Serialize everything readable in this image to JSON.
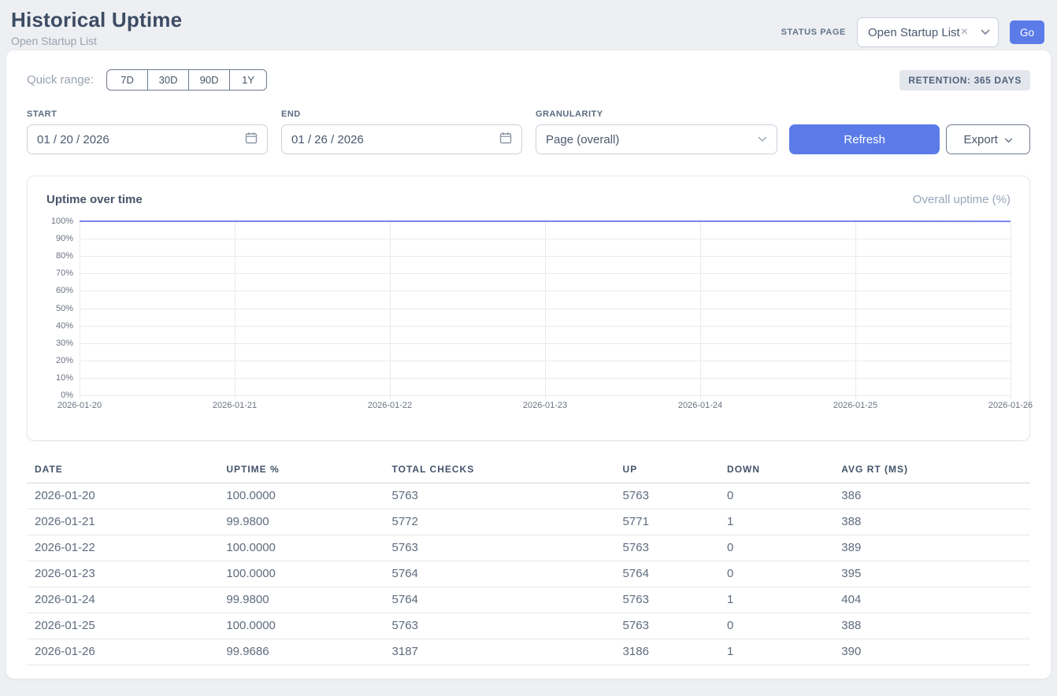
{
  "header": {
    "title": "Historical Uptime",
    "subtitle": "Open Startup List",
    "status_page_label": "STATUS PAGE",
    "status_page_value": "Open Startup List",
    "clear_icon": "x-icon",
    "go_label": "Go"
  },
  "controls": {
    "quick_range_label": "Quick range:",
    "quick_ranges": [
      "7D",
      "30D",
      "90D",
      "1Y"
    ],
    "retention_badge": "RETENTION: 365 DAYS",
    "start_label": "START",
    "start_value": "01 / 20 / 2026",
    "end_label": "END",
    "end_value": "01 / 26 / 2026",
    "granularity_label": "GRANULARITY",
    "granularity_value": "Page (overall)",
    "refresh_label": "Refresh",
    "export_label": "Export",
    "date_icon": "calendar-icon",
    "dropdown_icon": "chevron-down-icon"
  },
  "chart_data": {
    "type": "line",
    "title": "Uptime over time",
    "legend": "Overall uptime (%)",
    "legend_position": "top-right",
    "categories": [
      "2026-01-20",
      "2026-01-21",
      "2026-01-22",
      "2026-01-23",
      "2026-01-24",
      "2026-01-25",
      "2026-01-26"
    ],
    "series": [
      {
        "name": "Overall uptime (%)",
        "values": [
          100.0,
          99.98,
          100.0,
          100.0,
          99.98,
          100.0,
          99.9686
        ]
      }
    ],
    "xlabel": "",
    "ylabel": "",
    "ylim": [
      0,
      100
    ],
    "ytick_step": 10,
    "ytick_suffix": "%",
    "grid": true,
    "line_color": "#7d82ea"
  },
  "table": {
    "columns": [
      "DATE",
      "UPTIME %",
      "TOTAL CHECKS",
      "UP",
      "DOWN",
      "AVG RT (MS)"
    ],
    "rows": [
      [
        "2026-01-20",
        "100.0000",
        "5763",
        "5763",
        "0",
        "386"
      ],
      [
        "2026-01-21",
        "99.9800",
        "5772",
        "5771",
        "1",
        "388"
      ],
      [
        "2026-01-22",
        "100.0000",
        "5763",
        "5763",
        "0",
        "389"
      ],
      [
        "2026-01-23",
        "100.0000",
        "5764",
        "5764",
        "0",
        "395"
      ],
      [
        "2026-01-24",
        "99.9800",
        "5764",
        "5763",
        "1",
        "404"
      ],
      [
        "2026-01-25",
        "100.0000",
        "5763",
        "5763",
        "0",
        "388"
      ],
      [
        "2026-01-26",
        "99.9686",
        "3187",
        "3186",
        "1",
        "390"
      ]
    ]
  },
  "colors": {
    "accent_blue": "#5b7ce8",
    "chart_line": "#7d82ea",
    "page_background": "#edeff3",
    "badge_background": "#e3e7ed"
  }
}
